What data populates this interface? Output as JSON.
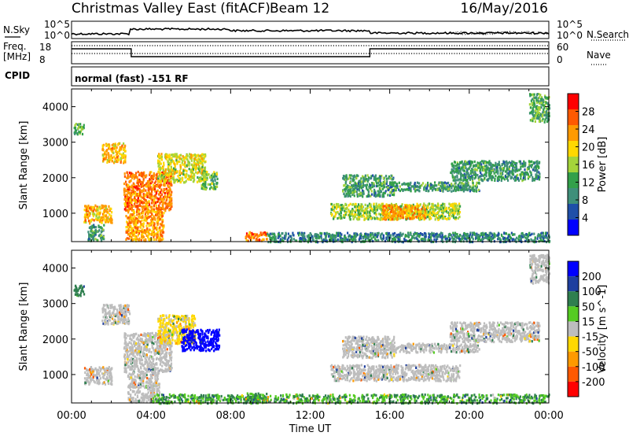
{
  "header": {
    "title": "Christmas Valley East (fitACF)",
    "beam": "Beam 12",
    "date": "16/May/2016"
  },
  "top_panels": {
    "nsky_label": "N.Sky",
    "nsearch_label": "N.Search",
    "nsky_ticks": [
      "10^5",
      "10^0"
    ],
    "nsearch_ticks": [
      "10^5",
      "10^0"
    ],
    "freq_label_1": "Freq.",
    "freq_label_2": "[MHz]",
    "freq_ticks": [
      "18",
      "8"
    ],
    "nave_label": "Nave",
    "nave_ticks": [
      "60",
      "0"
    ],
    "cpid_label": "CPID",
    "cpid_text": "normal (fast) -151 RF"
  },
  "colors": {
    "power_scale": [
      "#0000ff",
      "#1f4fa8",
      "#3f8f7a",
      "#33a04a",
      "#a4d43a",
      "#ffd800",
      "#ff9a00",
      "#ff5a00",
      "#ff0000"
    ],
    "velocity_scale": [
      "#0000ff",
      "#1f3f9f",
      "#2f7f4f",
      "#55cc22",
      "#bdbdbd",
      "#ffd800",
      "#ff9a00",
      "#ff5a00",
      "#ff0000"
    ]
  },
  "chart_data": [
    {
      "type": "heatmap",
      "title": "",
      "xlabel": "Time UT",
      "ylabel": "Slant Range [km]",
      "x_ticks": [
        "00:00",
        "04:00",
        "08:00",
        "12:00",
        "16:00",
        "20:00",
        "00:00"
      ],
      "y_ticks": [
        1000,
        2000,
        3000,
        4000
      ],
      "ylim": [
        200,
        4500
      ],
      "xlim_hours": [
        0,
        24
      ],
      "colorbar_label": "Power [dB]",
      "colorbar_ticks": [
        4,
        8,
        12,
        16,
        20,
        24,
        28
      ],
      "colorbar_range": [
        0,
        32
      ],
      "features": [
        {
          "t0": 0.1,
          "t1": 0.6,
          "r0": 3250,
          "r1": 3550,
          "level": 12
        },
        {
          "t0": 1.5,
          "t1": 2.7,
          "r0": 2450,
          "r1": 3000,
          "level": 22
        },
        {
          "t0": 0.6,
          "t1": 2.0,
          "r0": 750,
          "r1": 1250,
          "level": 22
        },
        {
          "t0": 0.8,
          "t1": 1.6,
          "r0": 250,
          "r1": 700,
          "level": 10
        },
        {
          "t0": 2.6,
          "t1": 5.0,
          "r0": 1100,
          "r1": 2200,
          "level": 26
        },
        {
          "t0": 2.7,
          "t1": 4.6,
          "r0": 250,
          "r1": 1100,
          "level": 24
        },
        {
          "t0": 4.3,
          "t1": 6.7,
          "r0": 1900,
          "r1": 2700,
          "level": 18
        },
        {
          "t0": 6.5,
          "t1": 7.3,
          "r0": 1700,
          "r1": 2200,
          "level": 14
        },
        {
          "t0": 8.7,
          "t1": 9.8,
          "r0": 250,
          "r1": 500,
          "level": 26
        },
        {
          "t0": 9.8,
          "t1": 24.0,
          "r0": 220,
          "r1": 480,
          "level": 8
        },
        {
          "t0": 13.0,
          "t1": 19.5,
          "r0": 850,
          "r1": 1300,
          "level": 16
        },
        {
          "t0": 15.6,
          "t1": 17.8,
          "r0": 850,
          "r1": 1250,
          "level": 24
        },
        {
          "t0": 13.6,
          "t1": 16.2,
          "r0": 1500,
          "r1": 2100,
          "level": 10
        },
        {
          "t0": 16.0,
          "t1": 20.5,
          "r0": 1650,
          "r1": 1900,
          "level": 10
        },
        {
          "t0": 19.0,
          "t1": 23.5,
          "r0": 1950,
          "r1": 2500,
          "level": 10
        },
        {
          "t0": 23.0,
          "t1": 24.0,
          "r0": 3600,
          "r1": 4400,
          "level": 12
        }
      ]
    },
    {
      "type": "heatmap",
      "title": "",
      "xlabel": "Time UT",
      "ylabel": "Slant Range [km]",
      "x_ticks": [
        "00:00",
        "04:00",
        "08:00",
        "12:00",
        "16:00",
        "20:00",
        "00:00"
      ],
      "y_ticks": [
        1000,
        2000,
        3000,
        4000
      ],
      "ylim": [
        200,
        4500
      ],
      "xlim_hours": [
        0,
        24
      ],
      "colorbar_label": "Velocity [m s^-1]",
      "colorbar_ticks": [
        "200",
        "100",
        "50",
        "15",
        "-15",
        "-50",
        "-100",
        "-200"
      ],
      "features": [
        {
          "t0": 0.1,
          "t1": 0.6,
          "r0": 3250,
          "r1": 3550,
          "vel": 60
        },
        {
          "t0": 1.5,
          "t1": 2.9,
          "r0": 2450,
          "r1": 3000,
          "vel": 0
        },
        {
          "t0": 0.6,
          "t1": 2.0,
          "r0": 750,
          "r1": 1250,
          "vel": 0
        },
        {
          "t0": 2.6,
          "t1": 5.0,
          "r0": 1100,
          "r1": 2200,
          "vel": 0
        },
        {
          "t0": 2.8,
          "t1": 4.4,
          "r0": 250,
          "r1": 1100,
          "vel": 0
        },
        {
          "t0": 4.3,
          "t1": 6.2,
          "r0": 1900,
          "r1": 2700,
          "vel": -20
        },
        {
          "t0": 5.5,
          "t1": 7.4,
          "r0": 1700,
          "r1": 2300,
          "vel": 200
        },
        {
          "t0": 8.7,
          "t1": 9.8,
          "r0": 250,
          "r1": 500,
          "vel": 30
        },
        {
          "t0": 4.0,
          "t1": 24.0,
          "r0": 220,
          "r1": 470,
          "vel": 30
        },
        {
          "t0": 13.0,
          "t1": 19.5,
          "r0": 850,
          "r1": 1300,
          "vel": 0
        },
        {
          "t0": 13.6,
          "t1": 16.2,
          "r0": 1500,
          "r1": 2100,
          "vel": 0
        },
        {
          "t0": 16.0,
          "t1": 20.5,
          "r0": 1650,
          "r1": 1900,
          "vel": 0
        },
        {
          "t0": 19.0,
          "t1": 23.5,
          "r0": 1950,
          "r1": 2500,
          "vel": 0
        },
        {
          "t0": 23.0,
          "t1": 24.0,
          "r0": 3600,
          "r1": 4400,
          "vel": 0
        }
      ]
    }
  ]
}
